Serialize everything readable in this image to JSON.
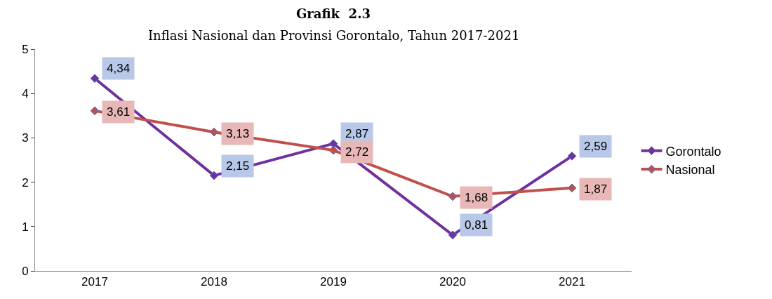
{
  "chart_data": {
    "type": "line",
    "title": "Grafik  2.3",
    "subtitle": "Inflasi Nasional dan Provinsi Gorontalo, Tahun 2017-2021",
    "categories": [
      "2017",
      "2018",
      "2019",
      "2020",
      "2021"
    ],
    "series": [
      {
        "name": "Gorontalo",
        "color": "#7030a0",
        "values": [
          4.34,
          2.15,
          2.87,
          0.81,
          2.59
        ],
        "value_labels": [
          "4,34",
          "2,15",
          "2,87",
          "0,81",
          "2,59"
        ]
      },
      {
        "name": "Nasional",
        "color": "#c0504d",
        "values": [
          3.61,
          3.13,
          2.72,
          1.68,
          1.87
        ],
        "value_labels": [
          "3,61",
          "3,13",
          "2,72",
          "1,68",
          "1,87"
        ]
      }
    ],
    "ylim": [
      0,
      5
    ],
    "yticks": [
      0,
      1,
      2,
      3,
      4,
      5
    ],
    "grid": false,
    "legend": "right",
    "marker": "diamond",
    "line_style": "solid"
  }
}
